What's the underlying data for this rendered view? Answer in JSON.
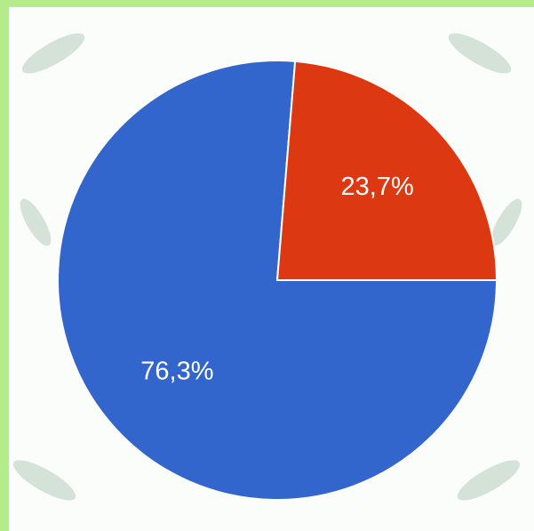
{
  "chart_data": {
    "type": "pie",
    "categories": [
      null,
      null
    ],
    "values": [
      76.3,
      23.7
    ],
    "value_labels": [
      "76,3%",
      "23,7%"
    ],
    "colors": [
      "#3366cc",
      "#dc3912"
    ]
  }
}
